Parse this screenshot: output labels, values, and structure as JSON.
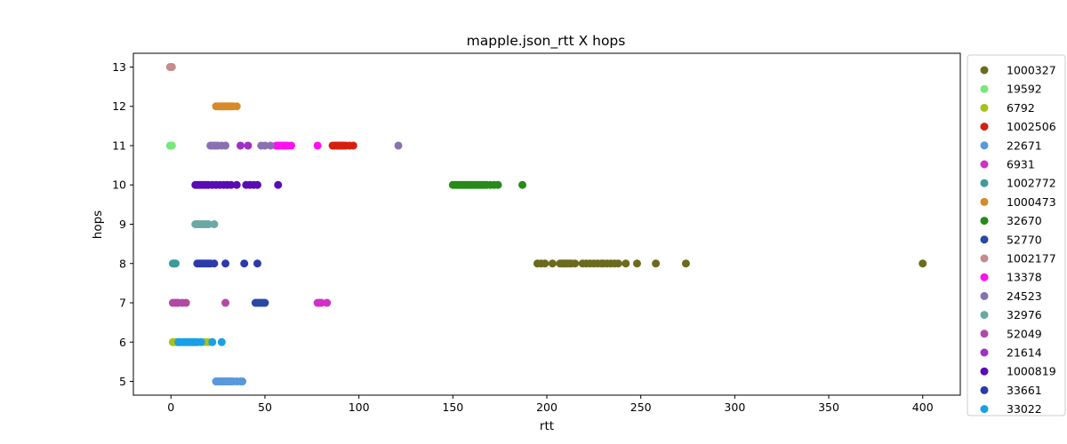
{
  "chart_data": {
    "type": "scatter",
    "title": "mapple.json_rtt X hops",
    "xlabel": "rtt",
    "ylabel": "hops",
    "xlim": [
      -20,
      420
    ],
    "ylim": [
      4.65,
      13.35
    ],
    "xticks": [
      0,
      50,
      100,
      150,
      200,
      250,
      300,
      350,
      400
    ],
    "yticks": [
      5,
      6,
      7,
      8,
      9,
      10,
      11,
      12,
      13
    ],
    "grid": false,
    "legend_position": "outside-right",
    "series": [
      {
        "name": "1000327",
        "color": "#6b6b1e",
        "y": 8,
        "x": [
          195,
          197,
          199,
          203,
          207,
          208,
          209,
          210,
          211,
          212,
          213,
          215,
          219,
          221,
          223,
          225,
          227,
          229,
          230,
          232,
          234,
          236,
          238,
          242,
          248,
          258,
          274,
          400
        ]
      },
      {
        "name": "19592",
        "color": "#77e87a",
        "y": 11,
        "x": [
          -0.5,
          0,
          0.5
        ]
      },
      {
        "name": "6792",
        "color": "#a6c21a",
        "y": 6,
        "x": [
          1,
          2,
          3,
          4,
          18,
          20
        ]
      },
      {
        "name": "1002506",
        "color": "#d6200f",
        "y": 11,
        "x": [
          86,
          87,
          88,
          89,
          90,
          91,
          92,
          93,
          95,
          97
        ]
      },
      {
        "name": "22671",
        "color": "#5898db",
        "y": 5,
        "x": [
          24,
          25,
          26,
          27,
          28,
          29,
          30,
          31,
          32,
          33,
          35,
          37,
          38
        ]
      },
      {
        "name": "6931",
        "color": "#d030c8",
        "y": 7,
        "x": [
          78,
          79,
          80,
          83
        ]
      },
      {
        "name": "1002772",
        "color": "#3c9c9c",
        "y": 8,
        "x": [
          1,
          1.5,
          2,
          2.5
        ]
      },
      {
        "name": "1000473",
        "color": "#d88a28",
        "y": 12,
        "x": [
          24,
          25,
          26,
          27,
          28,
          29,
          30,
          31,
          32,
          33,
          35
        ]
      },
      {
        "name": "32670",
        "color": "#278a19",
        "y": 10,
        "x": [
          150,
          151,
          152,
          153,
          154,
          155,
          156,
          157,
          158,
          159,
          160,
          161,
          162,
          163,
          164,
          165,
          166,
          167,
          168,
          170,
          172,
          174,
          187
        ]
      },
      {
        "name": "52770",
        "color": "#2848a4",
        "y": 7,
        "x": [
          45,
          46,
          47,
          48,
          49,
          50
        ]
      },
      {
        "name": "1002177",
        "color": "#c48c8c",
        "y": 13,
        "x": [
          -0.5,
          0,
          0.5
        ]
      },
      {
        "name": "13378",
        "color": "#ff10f0",
        "y": 11,
        "x": [
          56,
          57,
          58,
          59,
          60,
          61,
          62,
          64,
          78
        ]
      },
      {
        "name": "24523",
        "color": "#8a72b0",
        "y": 11,
        "x": [
          21,
          22,
          23,
          24,
          25,
          27,
          29,
          48,
          50,
          53,
          121
        ]
      },
      {
        "name": "32976",
        "color": "#6aa8a4",
        "y": 9,
        "x": [
          13,
          14,
          15,
          16,
          17,
          18,
          19,
          20,
          23
        ]
      },
      {
        "name": "52049",
        "color": "#b04aa4",
        "y": 7,
        "x": [
          1,
          2,
          3,
          4,
          6,
          8,
          29
        ]
      },
      {
        "name": "21614",
        "color": "#a030c4",
        "y": 11,
        "x": [
          37,
          41
        ]
      },
      {
        "name": "1000819",
        "color": "#5a0cb4",
        "y": 10,
        "x": [
          13,
          14,
          15,
          16,
          17,
          18,
          19,
          20,
          22,
          24,
          26,
          28,
          30,
          32,
          35,
          40,
          42,
          44,
          46,
          57
        ]
      },
      {
        "name": "33661",
        "color": "#2c3aaa",
        "y": 8,
        "x": [
          14,
          15,
          16,
          17,
          18,
          19,
          20,
          21,
          23,
          29,
          39,
          46
        ]
      },
      {
        "name": "33022",
        "color": "#1aa0e6",
        "y": 6,
        "x": [
          4,
          5,
          6,
          7,
          8,
          9,
          10,
          11,
          12,
          13,
          14,
          16,
          22,
          27
        ]
      }
    ]
  }
}
